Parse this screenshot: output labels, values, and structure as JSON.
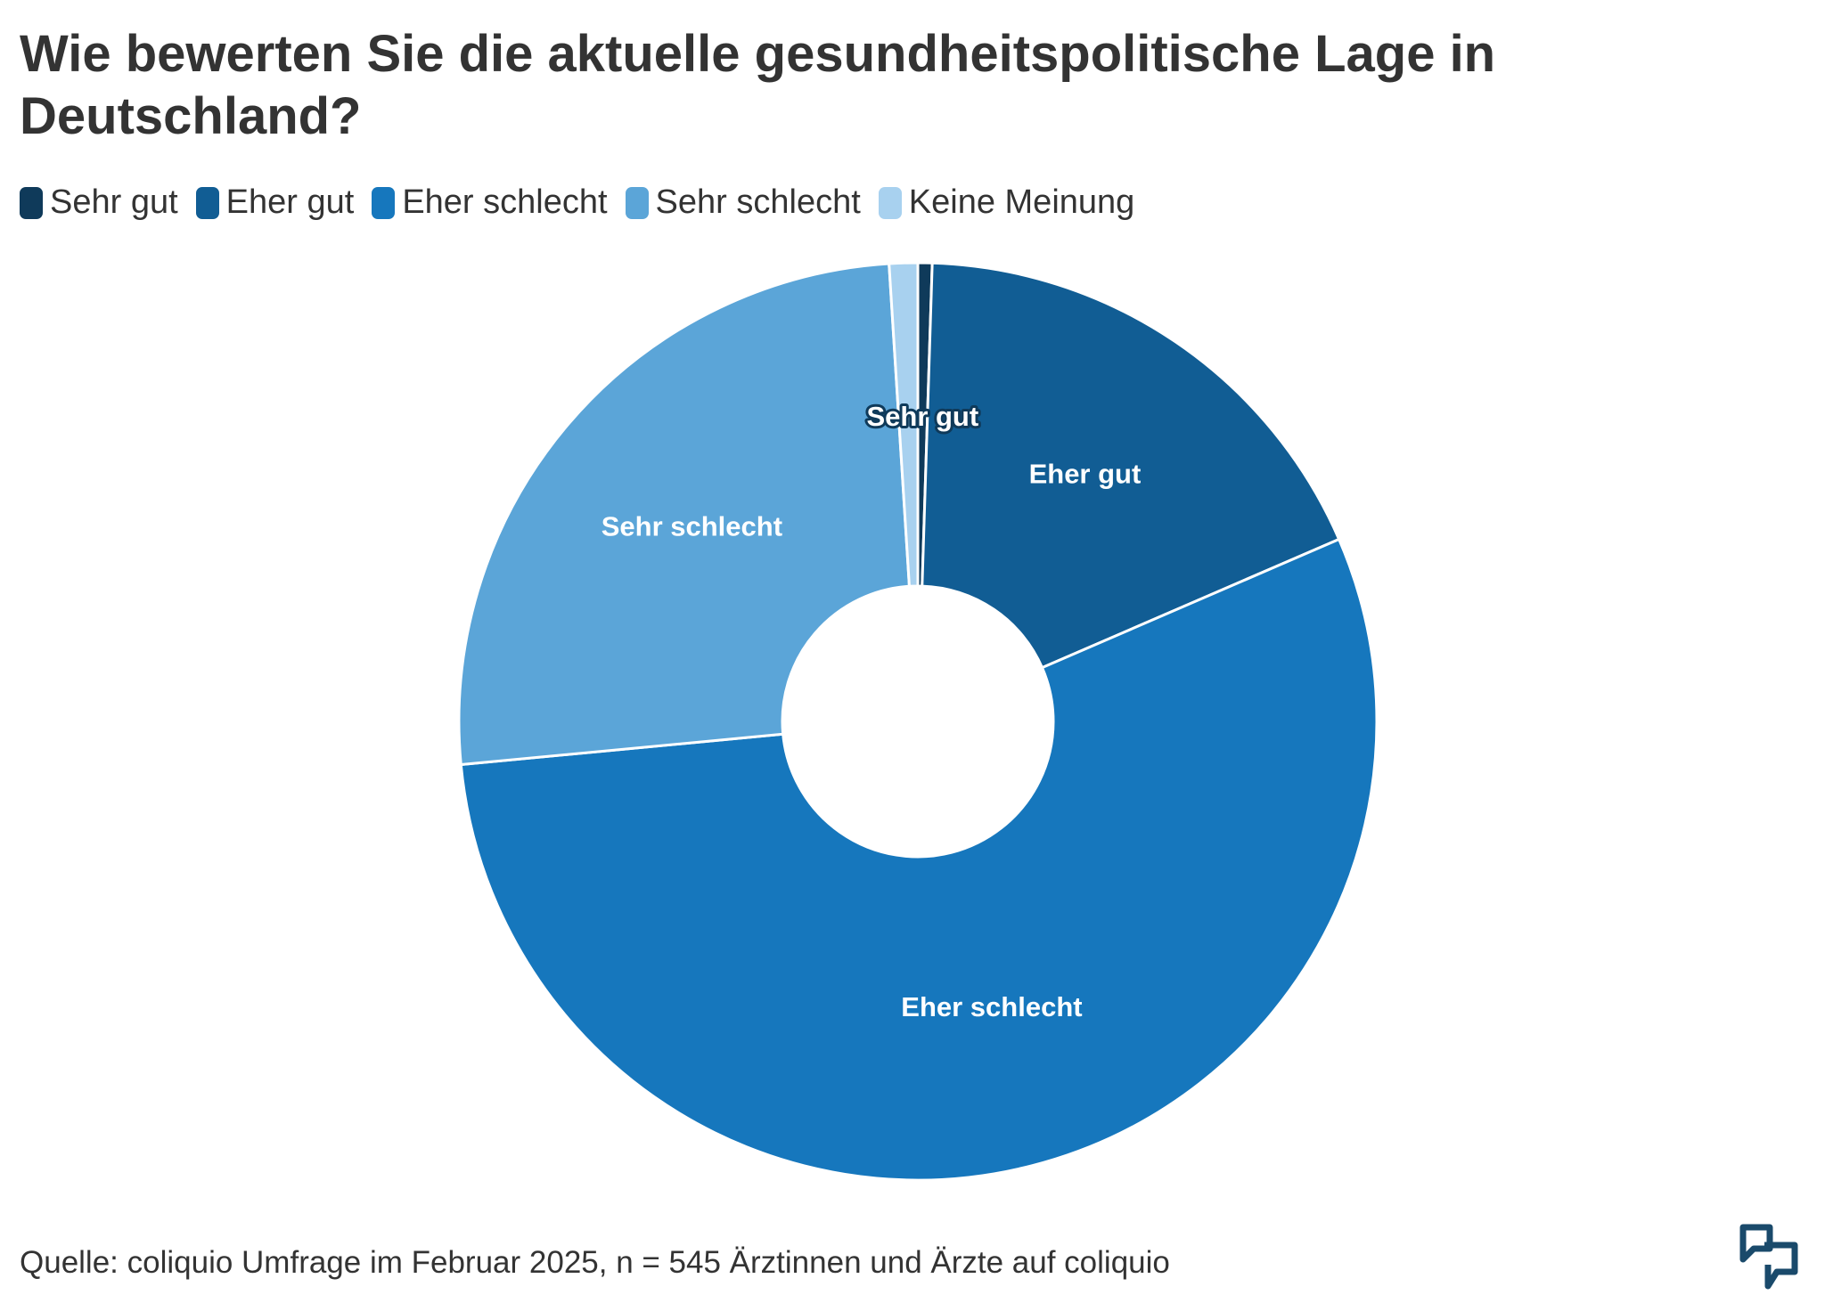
{
  "title": "Wie bewerten Sie die aktuelle gesundheitspolitische Lage in Deutschland?",
  "source": "Quelle: coliquio Umfrage im Februar 2025, n = 545 Ärztinnen und Ärzte auf coliquio",
  "logo_icon": "coliquio-logo-icon",
  "chart_data": {
    "type": "pie",
    "donut": true,
    "title": "Wie bewerten Sie die aktuelle gesundheitspolitische Lage in Deutschland?",
    "categories": [
      "Sehr gut",
      "Eher gut",
      "Eher schlecht",
      "Sehr schlecht",
      "Keine Meinung"
    ],
    "values": [
      0.5,
      18.0,
      55.0,
      25.5,
      1.0
    ],
    "colors": [
      "#0f3a5a",
      "#115d94",
      "#1677bd",
      "#5ba5d8",
      "#a8d1ef"
    ],
    "slice_labels": [
      "Sehr gut",
      "Eher gut",
      "Eher schlecht",
      "Sehr schlecht",
      ""
    ],
    "legend": "top-left"
  }
}
